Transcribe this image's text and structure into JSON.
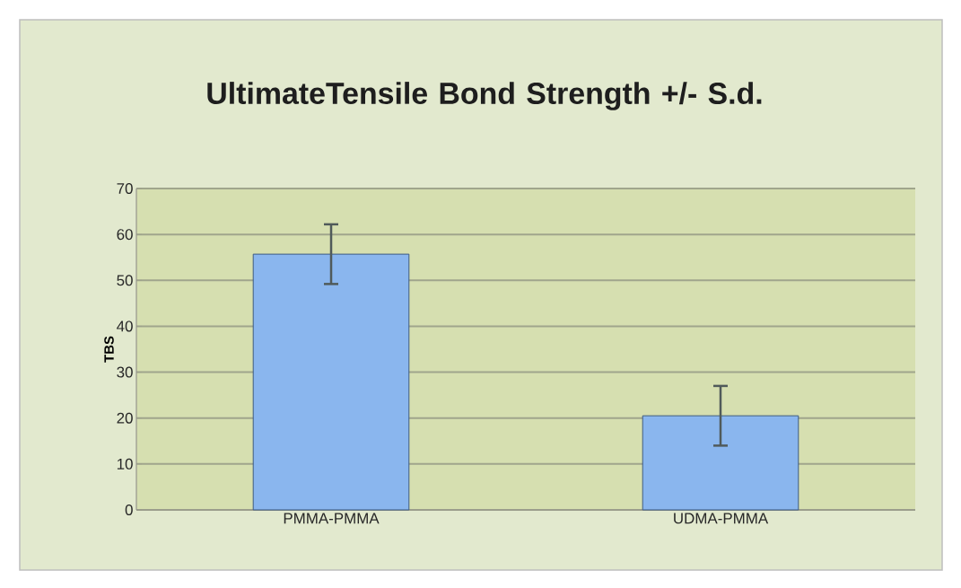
{
  "chart_data": {
    "type": "bar",
    "title": "UltimateTensile Bond Strength +/- S.d.",
    "ylabel": "TBS",
    "categories": [
      "PMMA-PMMA",
      "UDMA-PMMA"
    ],
    "values": [
      55.7,
      20.5
    ],
    "errors": [
      6.5,
      6.5
    ],
    "color": "#8ab6ee",
    "ylim": [
      0,
      70
    ],
    "yticks": [
      0,
      10,
      20,
      30,
      40,
      50,
      60,
      70
    ],
    "grid": "y"
  }
}
